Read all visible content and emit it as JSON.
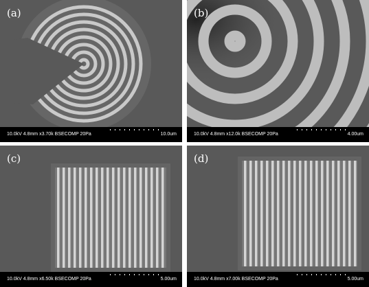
{
  "panels": [
    {
      "label": "(a)",
      "info": "10.0kV 4.8mm x3.70k BSECOMP 20Pa",
      "scale": "10.0um"
    },
    {
      "label": "(b)",
      "info": "10.0kV 4.8mm x12.0k BSECOMP 20Pa",
      "scale": "4.00um"
    },
    {
      "label": "(c)",
      "info": "10.0kV 4.8mm x6.50k BSECOMP 20Pa",
      "scale": "5.00um"
    },
    {
      "label": "(d)",
      "info": "10.0kV 4.8mm x7.00k BSECOMP 20Pa",
      "scale": "5.00um"
    }
  ]
}
